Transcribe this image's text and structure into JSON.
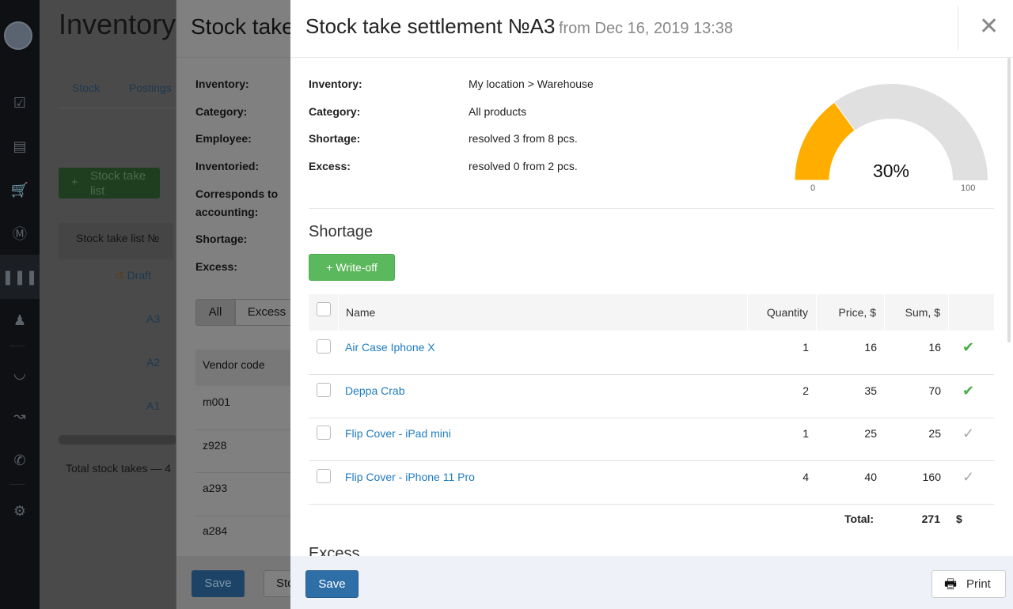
{
  "sidebar": {
    "icons": [
      "logo-icon",
      "clipboard-check-icon",
      "register-icon",
      "cart-icon",
      "dollar-icon",
      "barcode-icon",
      "user-icon",
      "speedometer-icon",
      "chart-icon",
      "phone-icon",
      "gear-icon"
    ]
  },
  "background": {
    "title": "Inventory",
    "tabs": [
      "Stock",
      "Postings"
    ],
    "add_button": "Stock take list",
    "column": "Stock take list №",
    "rows": [
      "Draft",
      "A3",
      "A2",
      "A1"
    ],
    "total": "Total stock takes — 4"
  },
  "panel2": {
    "title": "Stock take",
    "labels": [
      "Inventory:",
      "Category:",
      "Employee:",
      "Inventoried:",
      "Corresponds to accounting:",
      "Shortage:",
      "Excess:"
    ],
    "filters": [
      "All",
      "Excess"
    ],
    "column": "Vendor code",
    "codes": [
      "m001",
      "z928",
      "a293",
      "a284"
    ],
    "save": "Save",
    "second_button": "Sto"
  },
  "modal": {
    "title": "Stock take settlement №A3",
    "subtitle": "from Dec 16, 2019 13:38",
    "info": [
      {
        "label": "Inventory:",
        "value": "My location > Warehouse"
      },
      {
        "label": "Category:",
        "value": "All products"
      },
      {
        "label": "Shortage:",
        "value": "resolved 3 from 8 pcs."
      },
      {
        "label": "Excess:",
        "value": "resolved 0 from 2 pcs."
      }
    ],
    "gauge": {
      "value": 30,
      "label": "30%",
      "min": "0",
      "max": "100",
      "fill_color": "#ffae00",
      "track_color": "#e0e0e0"
    },
    "shortage_heading": "Shortage",
    "writeoff_button": "+ Write-off",
    "columns": {
      "name": "Name",
      "quantity": "Quantity",
      "price": "Price, $",
      "sum": "Sum, $"
    },
    "rows": [
      {
        "name": "Air Case Iphone X",
        "quantity": "1",
        "price": "16",
        "sum": "16",
        "resolved": true
      },
      {
        "name": "Deppa Crab",
        "quantity": "2",
        "price": "35",
        "sum": "70",
        "resolved": true
      },
      {
        "name": "Flip Cover - iPad mini",
        "quantity": "1",
        "price": "25",
        "sum": "25",
        "resolved": false
      },
      {
        "name": "Flip Cover - iPhone 11 Pro",
        "quantity": "4",
        "price": "40",
        "sum": "160",
        "resolved": false
      }
    ],
    "total_label": "Total:",
    "total_value": "271",
    "total_currency": "$",
    "excess_heading": "Excess",
    "save": "Save",
    "print": "Print"
  }
}
